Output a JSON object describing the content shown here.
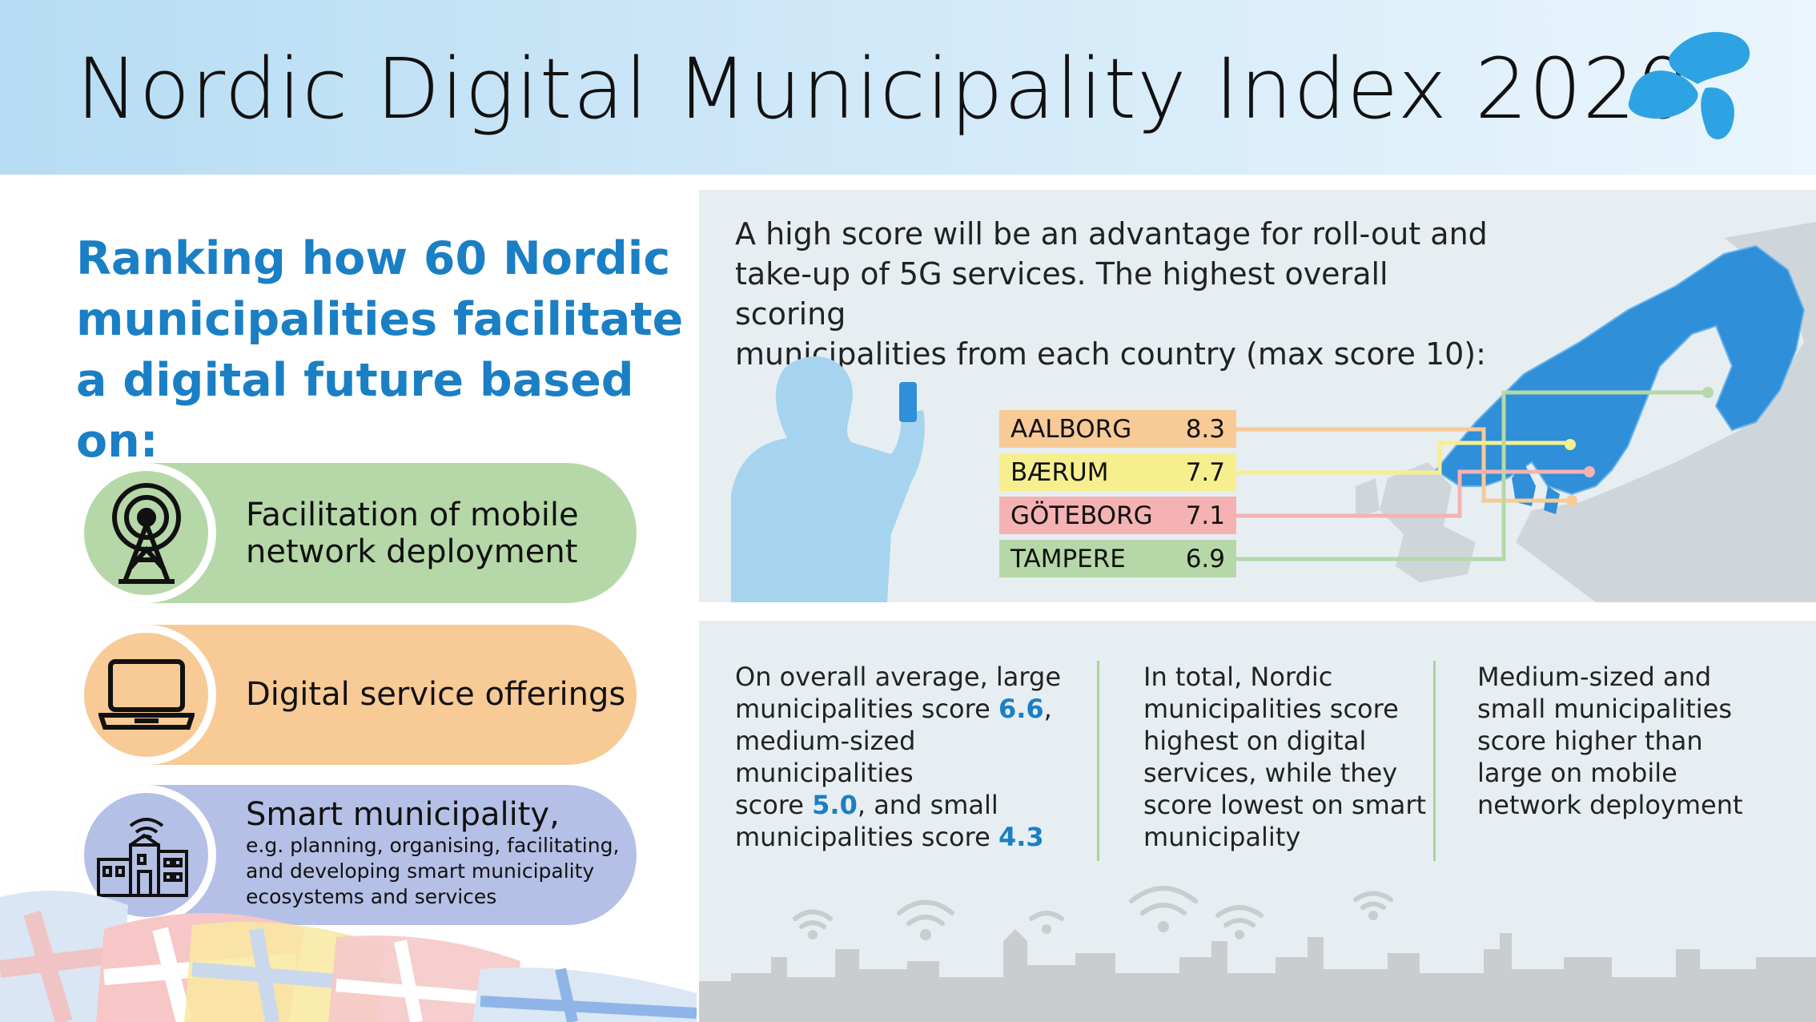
{
  "header": {
    "title": "Nordic Digital Municipality Index 2020",
    "logo_icon": "telenor-logo-icon",
    "bg_color": "#c6e3f6"
  },
  "subtitle": {
    "line1": "Ranking how 60 Nordic",
    "line2": "municipalities facilitate",
    "line3": "a digital future based on:",
    "color": "#1a7fc4"
  },
  "criteria": [
    {
      "icon": "antenna-tower-icon",
      "line1": "Facilitation of mobile",
      "line2": "network deployment",
      "color": "#b6d8a8"
    },
    {
      "icon": "laptop-icon",
      "line1": "Digital service offerings",
      "color": "#f8ca96"
    },
    {
      "icon": "smart-city-icon",
      "line1": "Smart municipality,",
      "detail1": "e.g. planning, organising, facilitating,",
      "detail2": "and developing smart municipality",
      "detail3": "ecosystems and services",
      "color": "#b5c0e6"
    }
  ],
  "intro": {
    "line1": "A high score will be an advantage for roll-out and",
    "line2": "take-up of 5G services. The highest overall scoring",
    "line3": "municipalities from each country (max score 10):"
  },
  "ranking": [
    {
      "name": "AALBORG",
      "score": "8.3",
      "color": "#f8ca96"
    },
    {
      "name": "BÆRUM",
      "score": "7.7",
      "color": "#f7ef8e"
    },
    {
      "name": "GÖTEBORG",
      "score": "7.1",
      "color": "#f4b2b2"
    },
    {
      "name": "TAMPERE",
      "score": "6.9",
      "color": "#b6d8a8"
    }
  ],
  "findings": {
    "col1": {
      "l1": "On overall average, large",
      "l2a": "municipalities score ",
      "l2b": "6.6",
      "l2c": ",",
      "l3": "medium-sized municipalities",
      "l4a": "score ",
      "l4b": "5.0",
      "l4c": ", and small",
      "l5a": "municipalities score ",
      "l5b": "4.3"
    },
    "col2": {
      "l1": "In total, Nordic",
      "l2": "municipalities score",
      "l3": "highest on digital",
      "l4": "services, while they",
      "l5": "score lowest on smart",
      "l6": "municipality"
    },
    "col3": {
      "l1": "Medium-sized and",
      "l2": "small municipalities",
      "l3": "score higher than",
      "l4": "large on mobile",
      "l5": "network deployment"
    }
  },
  "accent_color": "#1a7fc4",
  "map_color": "#2f8fd8"
}
